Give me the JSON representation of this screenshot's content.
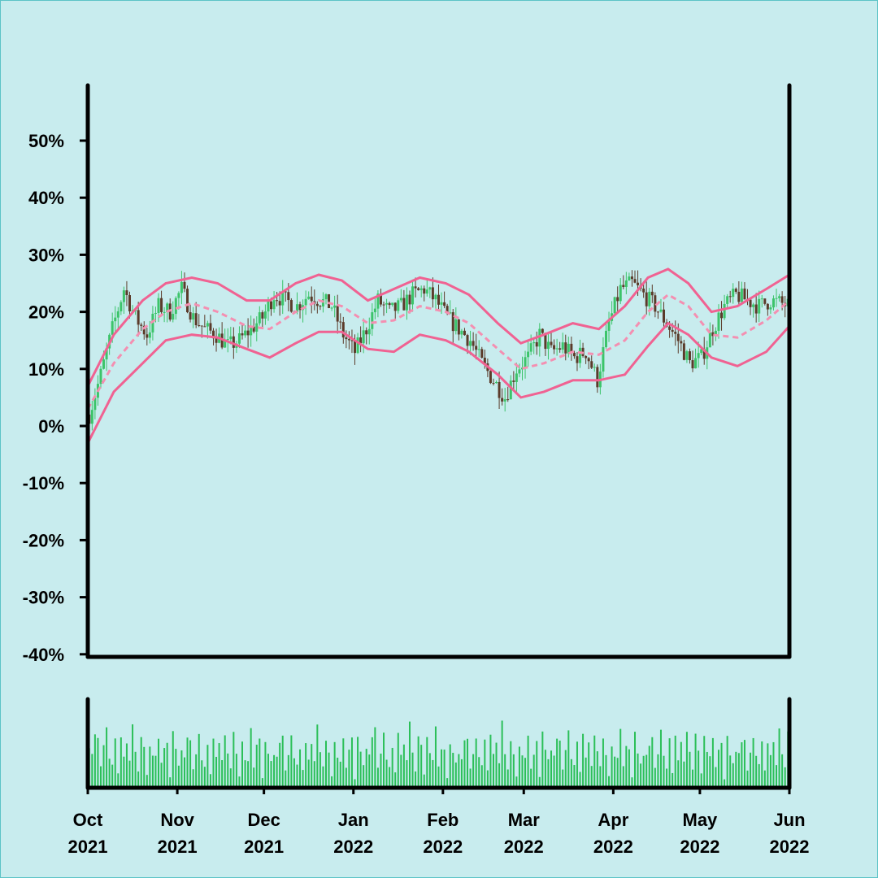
{
  "colors": {
    "background": "#c8ecee",
    "candle_up": "#3cc46a",
    "candle_down": "#5b3b2a",
    "band": "#f06292",
    "band_mid": "#f48fb1",
    "volume": "#2bbf58",
    "axis": "#000000"
  },
  "chart_data": {
    "type": "candlestick",
    "title": "",
    "xlabel": "",
    "ylabel": "",
    "ylim": [
      -40,
      58
    ],
    "y_ticks": [
      -40,
      -30,
      -20,
      -10,
      0,
      10,
      20,
      30,
      40,
      50
    ],
    "y_tick_labels": [
      "-40%",
      "-30%",
      "-20%",
      "-10%",
      "0%",
      "10%",
      "20%",
      "30%",
      "40%",
      "50%"
    ],
    "x_range": [
      "2021-10-01",
      "2022-06-01"
    ],
    "x_ticks": [
      "2021-10-01",
      "2021-11-01",
      "2021-12-01",
      "2022-01-01",
      "2022-02-01",
      "2022-03-01",
      "2022-04-01",
      "2022-05-01",
      "2022-06-01"
    ],
    "x_tick_labels": [
      {
        "month": "Oct",
        "year": "2021"
      },
      {
        "month": "Nov",
        "year": "2021"
      },
      {
        "month": "Dec",
        "year": "2021"
      },
      {
        "month": "Jan",
        "year": "2022"
      },
      {
        "month": "Feb",
        "year": "2022"
      },
      {
        "month": "Mar",
        "year": "2022"
      },
      {
        "month": "Apr",
        "year": "2022"
      },
      {
        "month": "May",
        "year": "2022"
      },
      {
        "month": "Jun",
        "year": "2022"
      }
    ],
    "close_trend": [
      [
        "2021-10-01",
        2
      ],
      [
        "2021-10-05",
        9
      ],
      [
        "2021-10-09",
        17
      ],
      [
        "2021-10-13",
        24
      ],
      [
        "2021-10-17",
        19
      ],
      [
        "2021-10-21",
        16
      ],
      [
        "2021-10-25",
        21
      ],
      [
        "2021-10-29",
        20
      ],
      [
        "2021-11-02",
        24
      ],
      [
        "2021-11-06",
        19
      ],
      [
        "2021-11-10",
        17
      ],
      [
        "2021-11-14",
        16
      ],
      [
        "2021-11-18",
        14
      ],
      [
        "2021-11-22",
        15
      ],
      [
        "2021-11-26",
        17
      ],
      [
        "2021-11-30",
        19
      ],
      [
        "2021-12-04",
        23
      ],
      [
        "2021-12-08",
        22
      ],
      [
        "2021-12-12",
        21
      ],
      [
        "2021-12-16",
        23
      ],
      [
        "2021-12-20",
        22
      ],
      [
        "2021-12-24",
        21
      ],
      [
        "2021-12-28",
        16
      ],
      [
        "2022-01-01",
        13
      ],
      [
        "2022-01-05",
        17
      ],
      [
        "2022-01-09",
        22
      ],
      [
        "2022-01-13",
        20
      ],
      [
        "2022-01-17",
        21
      ],
      [
        "2022-01-21",
        23
      ],
      [
        "2022-01-25",
        24
      ],
      [
        "2022-01-29",
        22
      ],
      [
        "2022-02-02",
        19
      ],
      [
        "2022-02-06",
        17
      ],
      [
        "2022-02-10",
        15
      ],
      [
        "2022-02-14",
        11
      ],
      [
        "2022-02-18",
        8
      ],
      [
        "2022-02-22",
        5
      ],
      [
        "2022-02-26",
        10
      ],
      [
        "2022-03-02",
        12
      ],
      [
        "2022-03-06",
        16
      ],
      [
        "2022-03-10",
        13
      ],
      [
        "2022-03-14",
        14
      ],
      [
        "2022-03-18",
        12
      ],
      [
        "2022-03-22",
        13
      ],
      [
        "2022-03-26",
        8
      ],
      [
        "2022-03-30",
        18
      ],
      [
        "2022-04-03",
        24
      ],
      [
        "2022-04-07",
        25
      ],
      [
        "2022-04-11",
        23
      ],
      [
        "2022-04-15",
        21
      ],
      [
        "2022-04-19",
        18
      ],
      [
        "2022-04-23",
        15
      ],
      [
        "2022-04-27",
        11
      ],
      [
        "2022-05-01",
        12
      ],
      [
        "2022-05-05",
        17
      ],
      [
        "2022-05-09",
        21
      ],
      [
        "2022-05-13",
        23
      ],
      [
        "2022-05-17",
        22
      ],
      [
        "2022-05-21",
        21
      ],
      [
        "2022-05-25",
        22
      ],
      [
        "2022-06-01",
        21
      ]
    ],
    "bands": {
      "upper": [
        [
          "2021-10-01",
          7
        ],
        [
          "2021-10-10",
          16
        ],
        [
          "2021-10-20",
          22
        ],
        [
          "2021-10-28",
          25
        ],
        [
          "2021-11-06",
          26
        ],
        [
          "2021-11-15",
          25
        ],
        [
          "2021-11-25",
          22
        ],
        [
          "2021-12-03",
          22
        ],
        [
          "2021-12-12",
          25
        ],
        [
          "2021-12-20",
          26.5
        ],
        [
          "2021-12-28",
          25.5
        ],
        [
          "2022-01-06",
          22
        ],
        [
          "2022-01-15",
          24
        ],
        [
          "2022-01-24",
          26
        ],
        [
          "2022-02-02",
          25
        ],
        [
          "2022-02-10",
          23
        ],
        [
          "2022-02-20",
          18
        ],
        [
          "2022-02-28",
          14.5
        ],
        [
          "2022-03-08",
          16
        ],
        [
          "2022-03-18",
          18
        ],
        [
          "2022-03-27",
          17
        ],
        [
          "2022-04-05",
          21
        ],
        [
          "2022-04-13",
          26
        ],
        [
          "2022-04-20",
          27.5
        ],
        [
          "2022-04-27",
          25
        ],
        [
          "2022-05-05",
          20
        ],
        [
          "2022-05-14",
          21
        ],
        [
          "2022-05-24",
          24
        ],
        [
          "2022-06-01",
          26.5
        ]
      ],
      "middle": [
        [
          "2021-10-01",
          3
        ],
        [
          "2021-10-10",
          11
        ],
        [
          "2021-10-20",
          17
        ],
        [
          "2021-10-28",
          20
        ],
        [
          "2021-11-06",
          21.5
        ],
        [
          "2021-11-15",
          20
        ],
        [
          "2021-11-25",
          17.5
        ],
        [
          "2021-12-03",
          17
        ],
        [
          "2021-12-12",
          20
        ],
        [
          "2021-12-20",
          22
        ],
        [
          "2021-12-28",
          21
        ],
        [
          "2022-01-06",
          18
        ],
        [
          "2022-01-15",
          18.5
        ],
        [
          "2022-01-24",
          21
        ],
        [
          "2022-02-02",
          20
        ],
        [
          "2022-02-10",
          18
        ],
        [
          "2022-02-20",
          13.5
        ],
        [
          "2022-02-28",
          10
        ],
        [
          "2022-03-08",
          11
        ],
        [
          "2022-03-18",
          13
        ],
        [
          "2022-03-27",
          12.5
        ],
        [
          "2022-04-05",
          15
        ],
        [
          "2022-04-13",
          20
        ],
        [
          "2022-04-20",
          23
        ],
        [
          "2022-04-27",
          21
        ],
        [
          "2022-05-05",
          16
        ],
        [
          "2022-05-14",
          15.5
        ],
        [
          "2022-05-24",
          18.5
        ],
        [
          "2022-06-01",
          22
        ]
      ],
      "lower": [
        [
          "2021-10-01",
          -3
        ],
        [
          "2021-10-10",
          6
        ],
        [
          "2021-10-20",
          11
        ],
        [
          "2021-10-28",
          15
        ],
        [
          "2021-11-06",
          16
        ],
        [
          "2021-11-15",
          15.5
        ],
        [
          "2021-11-25",
          13.5
        ],
        [
          "2021-12-03",
          12
        ],
        [
          "2021-12-12",
          14.5
        ],
        [
          "2021-12-20",
          16.5
        ],
        [
          "2021-12-28",
          16.5
        ],
        [
          "2022-01-06",
          13.5
        ],
        [
          "2022-01-15",
          13
        ],
        [
          "2022-01-24",
          16
        ],
        [
          "2022-02-02",
          15
        ],
        [
          "2022-02-10",
          13
        ],
        [
          "2022-02-20",
          9
        ],
        [
          "2022-02-28",
          5
        ],
        [
          "2022-03-08",
          6
        ],
        [
          "2022-03-18",
          8
        ],
        [
          "2022-03-27",
          8
        ],
        [
          "2022-04-05",
          9
        ],
        [
          "2022-04-13",
          14
        ],
        [
          "2022-04-20",
          18
        ],
        [
          "2022-04-27",
          16
        ],
        [
          "2022-05-05",
          12
        ],
        [
          "2022-05-14",
          10.5
        ],
        [
          "2022-05-24",
          13
        ],
        [
          "2022-06-01",
          17.5
        ]
      ]
    },
    "volume": {
      "note": "daily volume bars in relative units (0-1)",
      "pattern": [
        0.55,
        0.5,
        0.75,
        0.85,
        0.3,
        0.6,
        0.9,
        0.45,
        0.35,
        0.7,
        0.25,
        0.8,
        0.5,
        0.65,
        0.4,
        0.95,
        0.55,
        0.3,
        0.85,
        0.6,
        0.2,
        0.75,
        0.5,
        0.45,
        0.9,
        0.35,
        0.6,
        0.7,
        0.15,
        0.8,
        0.55,
        0.4
      ]
    }
  }
}
